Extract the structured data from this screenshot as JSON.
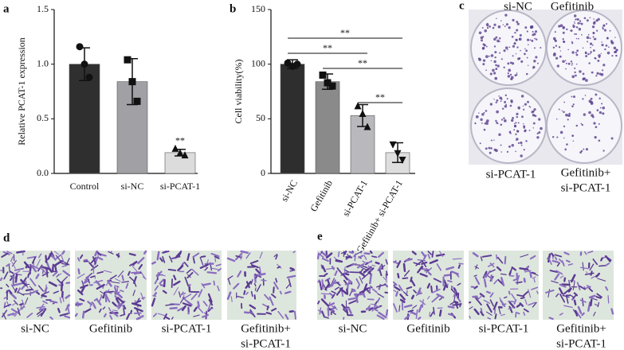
{
  "chart_data": [
    {
      "type": "bar",
      "panel": "a",
      "ylabel": "Relative PCAT-1 expression",
      "categories": [
        "Control",
        "si-NC",
        "si-PCAT-1"
      ],
      "values": [
        1.0,
        0.84,
        0.19
      ],
      "errors": [
        0.15,
        0.21,
        0.03
      ],
      "points": [
        [
          1.16,
          1.0,
          0.88
        ],
        [
          1.04,
          0.84,
          0.66
        ],
        [
          0.23,
          0.19,
          0.17
        ]
      ],
      "markers": [
        "circle",
        "square",
        "triangle"
      ],
      "colors": [
        "#2f2f2f",
        "#a0a0a5",
        "#dcdcdc"
      ],
      "ylim": [
        0,
        1.5
      ],
      "yticks": [
        {
          "value": 0,
          "label": "0.0"
        },
        0.5,
        {
          "value": 1,
          "label": "1.0"
        },
        1.5
      ],
      "annotations": [
        {
          "at": 2,
          "label": "**"
        }
      ]
    },
    {
      "type": "bar",
      "panel": "b",
      "ylabel": "Cell viability(%)",
      "categories": [
        "si-NC",
        "Gefitinib",
        "si-PCAT-1",
        "Gefitinib+ si-PCAT-1"
      ],
      "values": [
        100,
        84,
        53,
        19
      ],
      "errors": [
        4,
        7,
        10,
        9
      ],
      "points": [
        [
          101,
          98,
          100
        ],
        [
          90,
          83,
          80
        ],
        [
          62,
          55,
          43
        ],
        [
          26,
          18,
          12
        ]
      ],
      "markers": [
        "circle",
        "square",
        "triangle",
        "triangle-down"
      ],
      "colors": [
        "#2e2e2e",
        "#8a8a8a",
        "#b9b9bd",
        "#dedede"
      ],
      "ylim": [
        0,
        150
      ],
      "yticks": [
        0,
        50,
        100,
        150
      ],
      "comparisons": [
        {
          "between": [
            0,
            3
          ],
          "label": "**"
        },
        {
          "between": [
            0,
            2
          ],
          "label": "**"
        },
        {
          "between": [
            1,
            3
          ],
          "label": "**"
        },
        {
          "between": [
            2,
            3
          ],
          "label": "**"
        }
      ]
    }
  ],
  "panel_c": {
    "label": "c",
    "captions": [
      [
        "si-NC"
      ],
      [
        "Gefitinib"
      ],
      [
        "si-PCAT-1"
      ],
      [
        "Gefitinib+",
        "si-PCAT-1"
      ]
    ]
  },
  "panel_d": {
    "label": "d",
    "captions": [
      [
        "si-NC"
      ],
      [
        "Gefitinib"
      ],
      [
        "si-PCAT-1"
      ],
      [
        "Gefitinib+",
        "si-PCAT-1"
      ]
    ]
  },
  "panel_e": {
    "label": "e",
    "captions": [
      [
        "si-NC"
      ],
      [
        "Gefitinib"
      ],
      [
        "si-PCAT-1"
      ],
      [
        "Gefitinib+",
        "si-PCAT-1"
      ]
    ]
  }
}
